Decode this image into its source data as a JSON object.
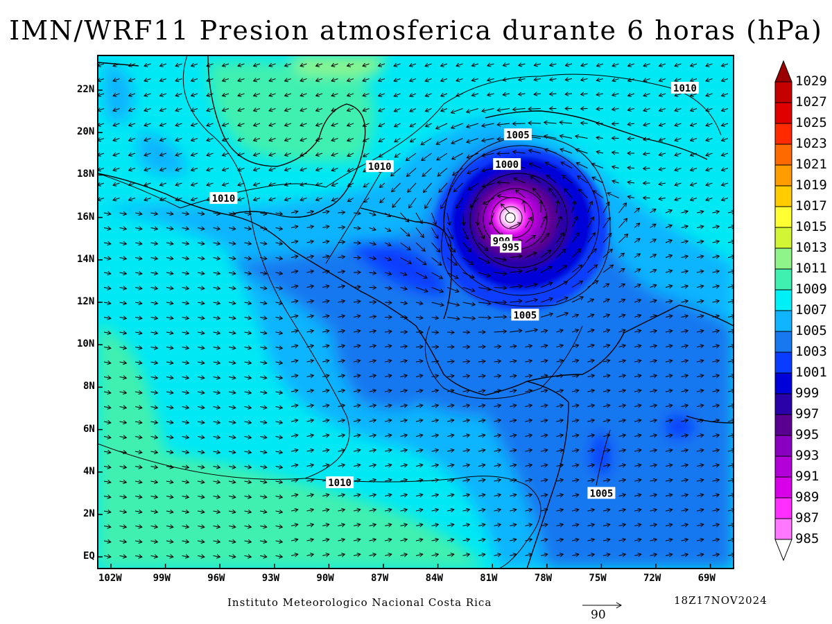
{
  "title": "IMN/WRF11 Presion atmosferica durante 6 horas (hPa)",
  "footer": {
    "institution": "Instituto Meteorologico Nacional Costa Rica",
    "datetime": "18Z17NOV2024",
    "vector_scale": "90"
  },
  "axes": {
    "lon_ticks": [
      "102W",
      "99W",
      "96W",
      "93W",
      "90W",
      "87W",
      "84W",
      "81W",
      "78W",
      "75W",
      "72W",
      "69W"
    ],
    "lat_ticks": [
      "22N",
      "20N",
      "18N",
      "16N",
      "14N",
      "12N",
      "10N",
      "8N",
      "6N",
      "4N",
      "2N",
      "EQ"
    ]
  },
  "colorbar": {
    "labels": [
      "1029",
      "1027",
      "1025",
      "1023",
      "1021",
      "1019",
      "1017",
      "1015",
      "1013",
      "1011",
      "1009",
      "1007",
      "1005",
      "1003",
      "1001",
      "999",
      "997",
      "995",
      "993",
      "991",
      "989",
      "987",
      "985"
    ],
    "colors": [
      "#8b0000",
      "#c40000",
      "#e10000",
      "#ff2a00",
      "#ff6a00",
      "#ff9c00",
      "#ffcc00",
      "#ffff33",
      "#d2f535",
      "#8ff58a",
      "#3ff0b0",
      "#00f0f8",
      "#10b4ff",
      "#1878f0",
      "#0a3cff",
      "#0000d8",
      "#2a00a8",
      "#5a0090",
      "#8a00c0",
      "#b400d8",
      "#d800e8",
      "#ff30ff",
      "#ff78ff",
      "#ffc8ff"
    ],
    "top_color": "#9b0000",
    "bottom_color": "#ffffff"
  },
  "contour_labels": [
    {
      "text": "1010",
      "lon": -70.4,
      "lat": 22.1
    },
    {
      "text": "1005",
      "lon": -79.6,
      "lat": 19.9
    },
    {
      "text": "1000",
      "lon": -80.2,
      "lat": 18.5
    },
    {
      "text": "1010",
      "lon": -87.2,
      "lat": 18.4
    },
    {
      "text": "1010",
      "lon": -95.8,
      "lat": 16.9
    },
    {
      "text": "990",
      "lon": -80.5,
      "lat": 14.9
    },
    {
      "text": "995",
      "lon": -80.0,
      "lat": 14.6
    },
    {
      "text": "1005",
      "lon": -79.2,
      "lat": 11.4
    },
    {
      "text": "1010",
      "lon": -89.4,
      "lat": 3.5
    },
    {
      "text": "1005",
      "lon": -75.0,
      "lat": 3.0
    }
  ],
  "storm_center": {
    "lon": -80.3,
    "lat": 16.0
  }
}
